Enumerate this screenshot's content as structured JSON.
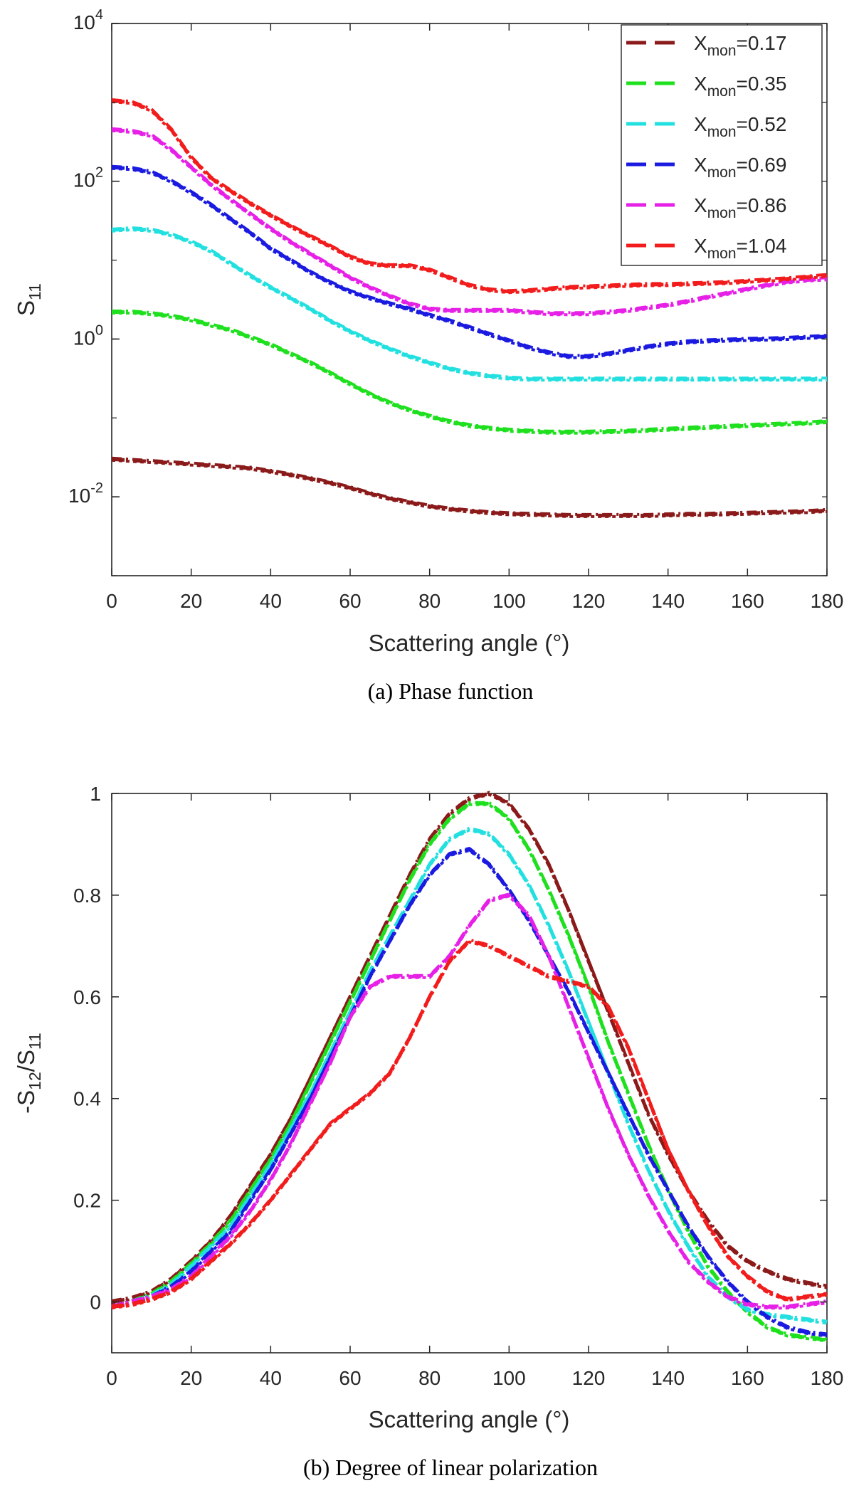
{
  "chart_data": [
    {
      "type": "line",
      "yscale": "log",
      "caption": "(a)   Phase function",
      "xlabel": "Scattering angle (°)",
      "ylabel": {
        "base": "S",
        "sub": "11"
      },
      "xlim": [
        0,
        180
      ],
      "ylim": [
        0.001,
        10000
      ],
      "xticks": [
        "0",
        "20",
        "40",
        "60",
        "80",
        "100",
        "120",
        "140",
        "160",
        "180"
      ],
      "yticks": [
        {
          "base": "10",
          "exp": "4",
          "value": 10000
        },
        {
          "base": "10",
          "exp": "2",
          "value": 100
        },
        {
          "base": "10",
          "exp": "0",
          "value": 1
        },
        {
          "base": "10",
          "exp": "-2",
          "value": 0.01
        }
      ],
      "x": [
        0,
        5,
        10,
        15,
        20,
        25,
        30,
        35,
        40,
        45,
        50,
        55,
        60,
        65,
        70,
        75,
        80,
        85,
        90,
        95,
        100,
        105,
        110,
        115,
        120,
        125,
        130,
        135,
        140,
        145,
        150,
        155,
        160,
        165,
        170,
        175,
        180
      ],
      "legend": [
        {
          "prefix": "X",
          "sub": "mon",
          "suffix": "=0.17"
        },
        {
          "prefix": "X",
          "sub": "mon",
          "suffix": "=0.35"
        },
        {
          "prefix": "X",
          "sub": "mon",
          "suffix": "=0.52"
        },
        {
          "prefix": "X",
          "sub": "mon",
          "suffix": "=0.69"
        },
        {
          "prefix": "X",
          "sub": "mon",
          "suffix": "=0.86"
        },
        {
          "prefix": "X",
          "sub": "mon",
          "suffix": "=1.04"
        }
      ],
      "series": [
        {
          "name": "Xmon=0.17",
          "color": "#8b1a1a",
          "values": [
            0.03,
            0.029,
            0.028,
            0.027,
            0.026,
            0.025,
            0.024,
            0.023,
            0.021,
            0.019,
            0.017,
            0.015,
            0.013,
            0.011,
            0.0095,
            0.0085,
            0.0076,
            0.007,
            0.0066,
            0.0063,
            0.0061,
            0.006,
            0.0059,
            0.0058,
            0.0058,
            0.0058,
            0.0058,
            0.0058,
            0.0059,
            0.006,
            0.006,
            0.0061,
            0.0062,
            0.0063,
            0.0064,
            0.0065,
            0.0067
          ]
        },
        {
          "name": "Xmon=0.35",
          "color": "#1ee01e",
          "values": [
            2.2,
            2.2,
            2.1,
            1.95,
            1.75,
            1.5,
            1.3,
            1.05,
            0.85,
            0.65,
            0.5,
            0.37,
            0.27,
            0.2,
            0.155,
            0.125,
            0.105,
            0.09,
            0.08,
            0.074,
            0.07,
            0.068,
            0.066,
            0.066,
            0.066,
            0.067,
            0.068,
            0.07,
            0.072,
            0.074,
            0.076,
            0.078,
            0.08,
            0.082,
            0.084,
            0.086,
            0.09
          ]
        },
        {
          "name": "Xmon=0.52",
          "color": "#22e0e0",
          "values": [
            24,
            25,
            24,
            21,
            17,
            13,
            9,
            6.3,
            4.5,
            3.3,
            2.4,
            1.7,
            1.25,
            0.95,
            0.75,
            0.6,
            0.5,
            0.42,
            0.37,
            0.34,
            0.32,
            0.31,
            0.31,
            0.31,
            0.31,
            0.31,
            0.31,
            0.31,
            0.31,
            0.31,
            0.31,
            0.31,
            0.31,
            0.31,
            0.31,
            0.31,
            0.31
          ]
        },
        {
          "name": "Xmon=0.69",
          "color": "#1a1ae0",
          "values": [
            150,
            145,
            130,
            100,
            72,
            50,
            33,
            22,
            14,
            10,
            7,
            5.2,
            4,
            3.3,
            2.8,
            2.4,
            2.0,
            1.7,
            1.4,
            1.15,
            0.95,
            0.78,
            0.67,
            0.6,
            0.6,
            0.65,
            0.72,
            0.8,
            0.87,
            0.92,
            0.95,
            0.97,
            0.99,
            1.0,
            1.02,
            1.05,
            1.08
          ]
        },
        {
          "name": "Xmon=0.86",
          "color": "#e620e6",
          "values": [
            450,
            430,
            380,
            250,
            150,
            90,
            58,
            38,
            25,
            17,
            12,
            8.5,
            6,
            4.5,
            3.5,
            2.8,
            2.4,
            2.3,
            2.3,
            2.3,
            2.3,
            2.2,
            2.1,
            2.1,
            2.1,
            2.2,
            2.3,
            2.5,
            2.7,
            3,
            3.4,
            3.8,
            4.3,
            4.8,
            5.3,
            5.6,
            5.8
          ]
        },
        {
          "name": "Xmon=1.04",
          "color": "#f21c1c",
          "values": [
            1050,
            1000,
            800,
            450,
            200,
            110,
            75,
            52,
            37,
            27,
            20,
            15,
            11,
            9,
            8.5,
            8.5,
            7.5,
            6,
            4.8,
            4.2,
            4,
            4.1,
            4.3,
            4.5,
            4.6,
            4.7,
            4.8,
            4.9,
            4.9,
            5,
            5.1,
            5.2,
            5.4,
            5.6,
            5.8,
            6.1,
            6.4
          ]
        }
      ]
    },
    {
      "type": "line",
      "yscale": "linear",
      "caption": "(b)   Degree of linear polarization",
      "xlabel": "Scattering angle (°)",
      "ylabel": {
        "pre": "-S",
        "sub1": "12",
        "mid": "/S",
        "sub2": "11"
      },
      "xlim": [
        0,
        180
      ],
      "ylim": [
        -0.1,
        1.0
      ],
      "xticks": [
        "0",
        "20",
        "40",
        "60",
        "80",
        "100",
        "120",
        "140",
        "160",
        "180"
      ],
      "yticks": [
        "1",
        "0.8",
        "0.6",
        "0.4",
        "0.2",
        "0"
      ],
      "x": [
        0,
        5,
        10,
        15,
        20,
        25,
        30,
        35,
        40,
        45,
        50,
        55,
        60,
        65,
        70,
        75,
        80,
        85,
        90,
        95,
        100,
        105,
        110,
        115,
        120,
        125,
        130,
        135,
        140,
        145,
        150,
        155,
        160,
        165,
        170,
        175,
        180
      ],
      "series": [
        {
          "name": "Xmon=0.17",
          "color": "#8b1a1a",
          "values": [
            0,
            0.007,
            0.02,
            0.045,
            0.08,
            0.12,
            0.17,
            0.23,
            0.29,
            0.36,
            0.44,
            0.52,
            0.6,
            0.68,
            0.76,
            0.84,
            0.91,
            0.96,
            0.99,
            1.0,
            0.98,
            0.93,
            0.86,
            0.77,
            0.67,
            0.57,
            0.47,
            0.37,
            0.29,
            0.22,
            0.16,
            0.11,
            0.08,
            0.06,
            0.045,
            0.037,
            0.03
          ]
        },
        {
          "name": "Xmon=0.35",
          "color": "#1ee01e",
          "values": [
            -0.01,
            0.0,
            0.015,
            0.04,
            0.075,
            0.115,
            0.16,
            0.22,
            0.28,
            0.35,
            0.43,
            0.51,
            0.59,
            0.67,
            0.75,
            0.83,
            0.9,
            0.95,
            0.98,
            0.98,
            0.95,
            0.89,
            0.81,
            0.72,
            0.62,
            0.51,
            0.41,
            0.31,
            0.22,
            0.14,
            0.07,
            0.02,
            -0.02,
            -0.05,
            -0.065,
            -0.07,
            -0.075
          ]
        },
        {
          "name": "Xmon=0.52",
          "color": "#22e0e0",
          "values": [
            -0.01,
            0.0,
            0.012,
            0.035,
            0.07,
            0.11,
            0.15,
            0.21,
            0.27,
            0.34,
            0.41,
            0.49,
            0.57,
            0.65,
            0.72,
            0.79,
            0.86,
            0.91,
            0.93,
            0.92,
            0.88,
            0.82,
            0.74,
            0.65,
            0.55,
            0.45,
            0.35,
            0.26,
            0.18,
            0.11,
            0.05,
            0.01,
            -0.015,
            -0.025,
            -0.03,
            -0.035,
            -0.04
          ]
        },
        {
          "name": "Xmon=0.69",
          "color": "#1a1ae0",
          "values": [
            -0.01,
            0.0,
            0.01,
            0.03,
            0.06,
            0.1,
            0.14,
            0.2,
            0.26,
            0.33,
            0.4,
            0.48,
            0.56,
            0.64,
            0.71,
            0.78,
            0.84,
            0.88,
            0.89,
            0.86,
            0.81,
            0.75,
            0.68,
            0.61,
            0.53,
            0.45,
            0.37,
            0.29,
            0.22,
            0.15,
            0.09,
            0.04,
            0.0,
            -0.03,
            -0.05,
            -0.06,
            -0.065
          ]
        },
        {
          "name": "Xmon=0.86",
          "color": "#e620e6",
          "values": [
            -0.01,
            0.0,
            0.01,
            0.025,
            0.05,
            0.09,
            0.13,
            0.18,
            0.24,
            0.31,
            0.39,
            0.47,
            0.56,
            0.62,
            0.64,
            0.64,
            0.64,
            0.68,
            0.74,
            0.79,
            0.8,
            0.76,
            0.68,
            0.58,
            0.48,
            0.38,
            0.29,
            0.21,
            0.14,
            0.08,
            0.04,
            0.01,
            -0.005,
            -0.01,
            -0.01,
            -0.005,
            0.0
          ]
        },
        {
          "name": "Xmon=1.04",
          "color": "#f21c1c",
          "values": [
            -0.01,
            -0.005,
            0.005,
            0.02,
            0.045,
            0.08,
            0.115,
            0.155,
            0.2,
            0.25,
            0.3,
            0.35,
            0.38,
            0.41,
            0.45,
            0.52,
            0.6,
            0.67,
            0.71,
            0.7,
            0.68,
            0.66,
            0.64,
            0.63,
            0.62,
            0.58,
            0.5,
            0.4,
            0.3,
            0.22,
            0.15,
            0.09,
            0.05,
            0.02,
            0.005,
            0.01,
            0.015
          ]
        }
      ]
    }
  ]
}
